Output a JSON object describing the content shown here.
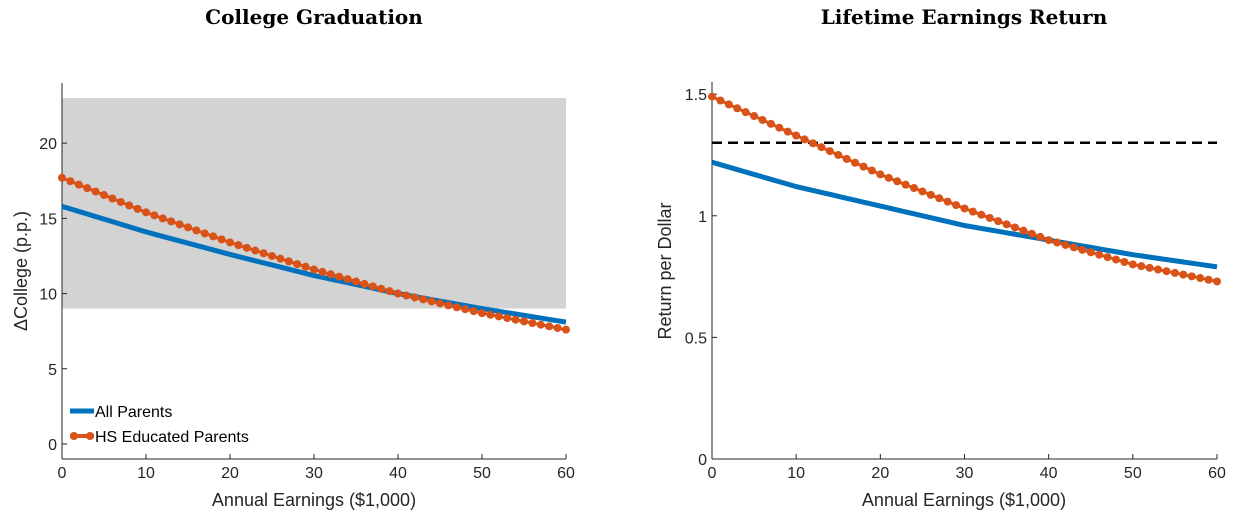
{
  "colors": {
    "all_parents": "#0072BD",
    "hs_parents": "#D95319",
    "band": "#D3D3D3",
    "reference": "#000000",
    "axis": "#262626"
  },
  "chart_data": [
    {
      "type": "line",
      "title": "College Graduation",
      "xlabel": "Annual Earnings ($1,000)",
      "ylabel": "ΔCollege (p.p.)",
      "xlim": [
        0,
        60
      ],
      "ylim": [
        -1,
        24
      ],
      "xticks": [
        0,
        10,
        20,
        30,
        40,
        50,
        60
      ],
      "yticks": [
        0,
        5,
        10,
        15,
        20
      ],
      "grid": false,
      "legend_position": "bottom-left",
      "shaded_band": {
        "x": [
          0,
          60
        ],
        "y": [
          9,
          23
        ]
      },
      "series": [
        {
          "name": "All Parents",
          "style": "thick-line",
          "x": [
            0,
            10,
            20,
            30,
            40,
            50,
            60
          ],
          "y": [
            15.8,
            14.1,
            12.6,
            11.2,
            10.0,
            9.0,
            8.1
          ]
        },
        {
          "name": "HS Educated Parents",
          "style": "line-with-markers",
          "x": [
            0,
            10,
            20,
            30,
            40,
            50,
            60
          ],
          "y": [
            17.7,
            15.4,
            13.4,
            11.6,
            10.0,
            8.7,
            7.6
          ]
        }
      ]
    },
    {
      "type": "line",
      "title": "Lifetime Earnings Return",
      "xlabel": "Annual Earnings ($1,000)",
      "ylabel": "Return per Dollar",
      "xlim": [
        0,
        60
      ],
      "ylim": [
        0,
        1.55
      ],
      "xticks": [
        0,
        10,
        20,
        30,
        40,
        50,
        60
      ],
      "yticks": [
        0,
        0.5,
        1,
        1.5
      ],
      "grid": false,
      "reference_line": {
        "y": 1.3,
        "style": "dashed"
      },
      "series": [
        {
          "name": "All Parents",
          "style": "thick-line",
          "x": [
            0,
            10,
            20,
            30,
            40,
            50,
            60
          ],
          "y": [
            1.22,
            1.12,
            1.04,
            0.96,
            0.9,
            0.84,
            0.79
          ]
        },
        {
          "name": "HS Educated Parents",
          "style": "line-with-markers",
          "x": [
            0,
            10,
            20,
            30,
            40,
            50,
            60
          ],
          "y": [
            1.49,
            1.33,
            1.17,
            1.03,
            0.9,
            0.8,
            0.73
          ]
        }
      ]
    }
  ]
}
